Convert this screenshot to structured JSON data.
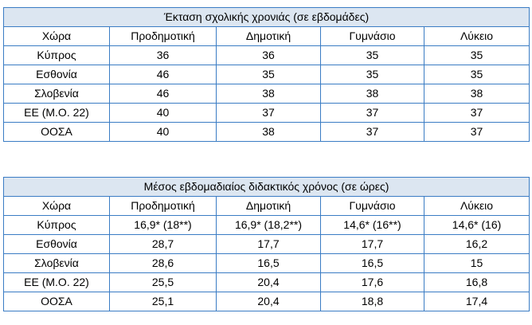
{
  "table1": {
    "title": "Έκταση σχολικής χρονιάς (σε εβδομάδες)",
    "headers": [
      "Χώρα",
      "Προδημοτική",
      "Δημοτική",
      "Γυμνάσιο",
      "Λύκειο"
    ],
    "rows": [
      [
        "Κύπρος",
        "36",
        "36",
        "35",
        "35"
      ],
      [
        "Εσθονία",
        "46",
        "35",
        "35",
        "35"
      ],
      [
        "Σλοβενία",
        "46",
        "38",
        "38",
        "38"
      ],
      [
        "ΕΕ (Μ.Ο. 22)",
        "40",
        "37",
        "37",
        "37"
      ],
      [
        "ΟΟΣΑ",
        "40",
        "38",
        "37",
        "37"
      ]
    ]
  },
  "table2": {
    "title": "Μέσος εβδομαδιαίος διδακτικός χρόνος (σε ώρες)",
    "headers": [
      "Χώρα",
      "Προδημοτική",
      "Δημοτική",
      "Γυμνάσιο",
      "Λύκειο"
    ],
    "rows": [
      [
        "Κύπρος",
        "16,9* (18**)",
        "16,9* (18,2**)",
        "14,6* (16**)",
        "14,6* (16)"
      ],
      [
        "Εσθονία",
        "28,7",
        "17,7",
        "17,7",
        "16,2"
      ],
      [
        "Σλοβενία",
        "28,6",
        "16,5",
        "16,5",
        "15"
      ],
      [
        "ΕΕ (Μ.Ο. 22)",
        "25,5",
        "20,4",
        "17,6",
        "16,8"
      ],
      [
        "ΟΟΣΑ",
        "25,1",
        "20,4",
        "18,8",
        "17,4"
      ]
    ]
  }
}
